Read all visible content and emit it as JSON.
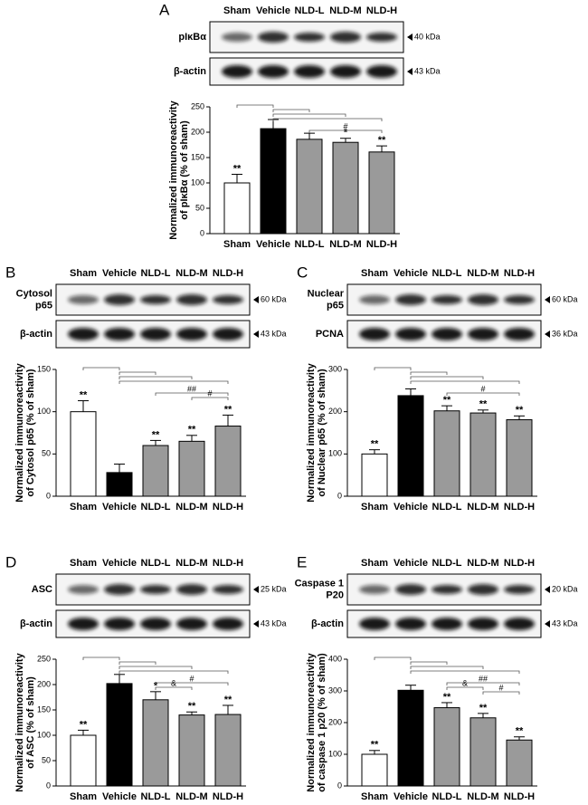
{
  "chart_data": [
    {
      "panel": "A",
      "type": "bar",
      "blots": [
        {
          "label": [
            "pIκBα"
          ],
          "kda": "40 kDa"
        },
        {
          "label": [
            "β-actin"
          ],
          "kda": "43 kDa"
        }
      ],
      "ylabel": [
        "Normalized immunoreactivity",
        "of pIκBα (% of sham)"
      ],
      "categories": [
        "Sham",
        "Vehicle",
        "NLD-L",
        "NLD-M",
        "NLD-H"
      ],
      "values": [
        100,
        207,
        186,
        180,
        161
      ],
      "errors": [
        17,
        18,
        12,
        8,
        12
      ],
      "significance": [
        "**",
        null,
        null,
        "*",
        "**"
      ],
      "colors": [
        "#ffffff",
        "#000000",
        "#9a9a9a",
        "#9a9a9a",
        "#9a9a9a"
      ],
      "ylim": [
        0,
        250
      ],
      "yticks": [
        0,
        50,
        100,
        150,
        200,
        250
      ],
      "brackets": [
        {
          "from": "Vehicle",
          "to": "Sham"
        },
        {
          "from": "Vehicle",
          "to": "NLD-L"
        },
        {
          "from": "Vehicle",
          "to": "NLD-M"
        },
        {
          "from": "Vehicle",
          "to": "NLD-H"
        },
        {
          "from": "NLD-L",
          "to": "NLD-H",
          "label": "#"
        }
      ]
    },
    {
      "panel": "B",
      "type": "bar",
      "blots": [
        {
          "label": [
            "Cytosol",
            "p65"
          ],
          "kda": "60 kDa"
        },
        {
          "label": [
            "β-actin"
          ],
          "kda": "43 kDa"
        }
      ],
      "ylabel": [
        "Normalized immunoreactivity",
        "of Cytosol p65 (% of sham)"
      ],
      "categories": [
        "Sham",
        "Vehicle",
        "NLD-L",
        "NLD-M",
        "NLD-H"
      ],
      "values": [
        100,
        28,
        60,
        65,
        83
      ],
      "errors": [
        13,
        10,
        6,
        7,
        13
      ],
      "significance": [
        "**",
        null,
        "**",
        "**",
        "**"
      ],
      "colors": [
        "#ffffff",
        "#000000",
        "#9a9a9a",
        "#9a9a9a",
        "#9a9a9a"
      ],
      "ylim": [
        0,
        150
      ],
      "yticks": [
        0,
        50,
        100,
        150
      ],
      "brackets": [
        {
          "from": "Vehicle",
          "to": "Sham"
        },
        {
          "from": "Vehicle",
          "to": "NLD-L"
        },
        {
          "from": "Vehicle",
          "to": "NLD-M"
        },
        {
          "from": "Vehicle",
          "to": "NLD-H"
        },
        {
          "from": "NLD-L",
          "to": "NLD-H",
          "label": "##"
        },
        {
          "from": "NLD-M",
          "to": "NLD-H",
          "label": "#"
        }
      ]
    },
    {
      "panel": "C",
      "type": "bar",
      "blots": [
        {
          "label": [
            "Nuclear",
            "p65"
          ],
          "kda": "60 kDa"
        },
        {
          "label": [
            "PCNA"
          ],
          "kda": "36 kDa"
        }
      ],
      "ylabel": [
        "Normalized immunoreactivity",
        "of Nuclear p65 (% of sham)"
      ],
      "categories": [
        "Sham",
        "Vehicle",
        "NLD-L",
        "NLD-M",
        "NLD-H"
      ],
      "values": [
        100,
        238,
        202,
        197,
        181
      ],
      "errors": [
        10,
        16,
        12,
        7,
        9
      ],
      "significance": [
        "**",
        null,
        "**",
        "**",
        "**"
      ],
      "colors": [
        "#ffffff",
        "#000000",
        "#9a9a9a",
        "#9a9a9a",
        "#9a9a9a"
      ],
      "ylim": [
        0,
        300
      ],
      "yticks": [
        0,
        100,
        200,
        300
      ],
      "brackets": [
        {
          "from": "Vehicle",
          "to": "Sham"
        },
        {
          "from": "Vehicle",
          "to": "NLD-L"
        },
        {
          "from": "Vehicle",
          "to": "NLD-M"
        },
        {
          "from": "Vehicle",
          "to": "NLD-H"
        },
        {
          "from": "NLD-L",
          "to": "NLD-H",
          "label": "#"
        }
      ]
    },
    {
      "panel": "D",
      "type": "bar",
      "blots": [
        {
          "label": [
            "ASC"
          ],
          "kda": "25 kDa"
        },
        {
          "label": [
            "β-actin"
          ],
          "kda": "43 kDa"
        }
      ],
      "ylabel": [
        "Normalized immunoreactivity",
        "of ASC (% of sham)"
      ],
      "categories": [
        "Sham",
        "Vehicle",
        "NLD-L",
        "NLD-M",
        "NLD-H"
      ],
      "values": [
        100,
        202,
        170,
        140,
        141
      ],
      "errors": [
        10,
        18,
        16,
        6,
        18
      ],
      "significance": [
        "**",
        null,
        "*",
        "**",
        "**"
      ],
      "colors": [
        "#ffffff",
        "#000000",
        "#9a9a9a",
        "#9a9a9a",
        "#9a9a9a"
      ],
      "ylim": [
        0,
        250
      ],
      "yticks": [
        0,
        50,
        100,
        150,
        200,
        250
      ],
      "brackets": [
        {
          "from": "Vehicle",
          "to": "Sham"
        },
        {
          "from": "Vehicle",
          "to": "NLD-L"
        },
        {
          "from": "Vehicle",
          "to": "NLD-M"
        },
        {
          "from": "Vehicle",
          "to": "NLD-H"
        },
        {
          "from": "NLD-L",
          "to": "NLD-H",
          "label": "#"
        },
        {
          "from": "NLD-L",
          "to": "NLD-M",
          "label": "&"
        }
      ]
    },
    {
      "panel": "E",
      "type": "bar",
      "blots": [
        {
          "label": [
            "Caspase 1",
            "P20"
          ],
          "kda": "20 kDa"
        },
        {
          "label": [
            "β-actin"
          ],
          "kda": "43 kDa"
        }
      ],
      "ylabel": [
        "Normalized immunoreactivity",
        "of caspase 1 p20 (% of sham)"
      ],
      "categories": [
        "Sham",
        "Vehicle",
        "NLD-L",
        "NLD-M",
        "NLD-H"
      ],
      "values": [
        100,
        302,
        247,
        215,
        145
      ],
      "errors": [
        12,
        16,
        16,
        14,
        10
      ],
      "significance": [
        "**",
        null,
        "**",
        "**",
        "**"
      ],
      "colors": [
        "#ffffff",
        "#000000",
        "#9a9a9a",
        "#9a9a9a",
        "#9a9a9a"
      ],
      "ylim": [
        0,
        400
      ],
      "yticks": [
        0,
        100,
        200,
        300,
        400
      ],
      "brackets": [
        {
          "from": "Vehicle",
          "to": "Sham"
        },
        {
          "from": "Vehicle",
          "to": "NLD-L"
        },
        {
          "from": "Vehicle",
          "to": "NLD-M"
        },
        {
          "from": "Vehicle",
          "to": "NLD-H"
        },
        {
          "from": "NLD-L",
          "to": "NLD-H",
          "label": "##"
        },
        {
          "from": "NLD-L",
          "to": "NLD-M",
          "label": "&"
        },
        {
          "from": "NLD-M",
          "to": "NLD-H",
          "label": "#"
        }
      ]
    }
  ]
}
